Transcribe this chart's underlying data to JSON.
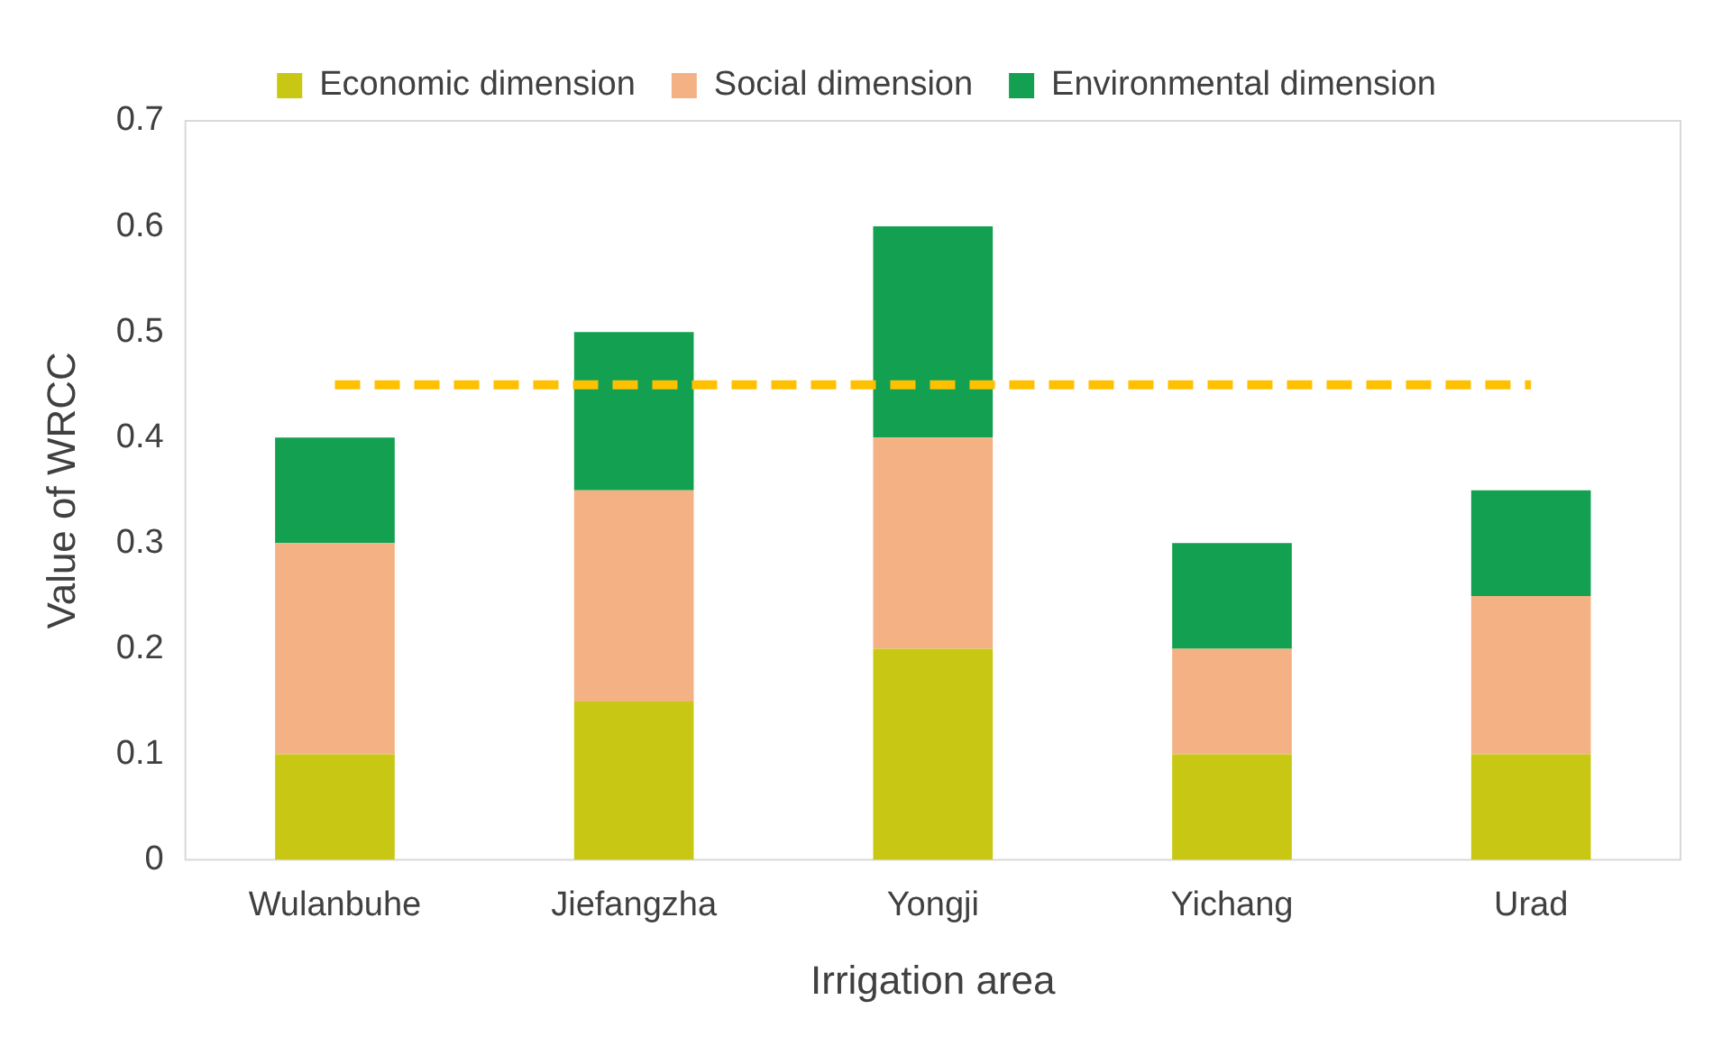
{
  "chart_data": {
    "type": "bar",
    "stacked": true,
    "xlabel": "Irrigation area",
    "ylabel": "Value of WRCC",
    "categories": [
      "Wulanbuhe",
      "Jiefangzha",
      "Yongji",
      "Yichang",
      "Urad"
    ],
    "series": [
      {
        "name": "Economic dimension",
        "color": "#c8c814",
        "values": [
          0.1,
          0.15,
          0.2,
          0.1,
          0.1
        ]
      },
      {
        "name": "Social dimension",
        "color": "#f4b183",
        "values": [
          0.2,
          0.2,
          0.2,
          0.1,
          0.15
        ]
      },
      {
        "name": "Environmental dimension",
        "color": "#13a050",
        "values": [
          0.1,
          0.15,
          0.2,
          0.1,
          0.1
        ]
      }
    ],
    "ylim": [
      0,
      0.7
    ],
    "yticks": [
      0,
      0.1,
      0.2,
      0.3,
      0.4,
      0.5,
      0.6,
      0.7
    ],
    "grid": false,
    "legend": "top",
    "ref_lines": [
      {
        "axis": "y",
        "value": 0.45,
        "color": "#ffc000",
        "line_style": "dashed"
      }
    ]
  }
}
